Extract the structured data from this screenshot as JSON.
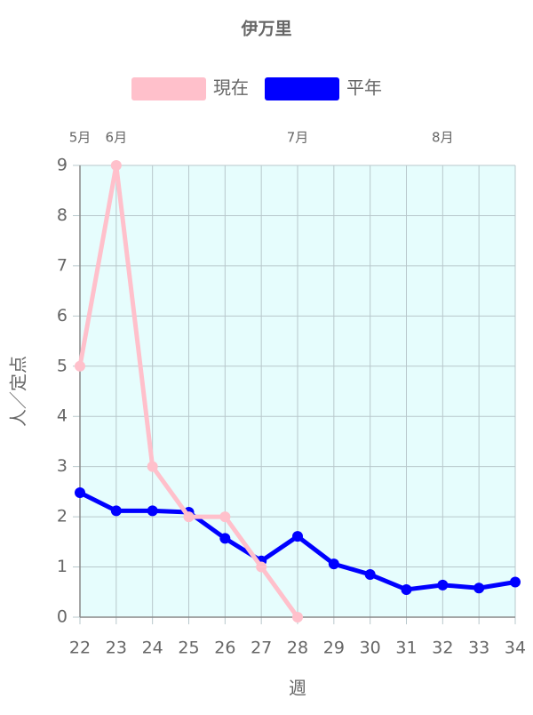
{
  "chart_data": {
    "type": "line",
    "title": "伊万里",
    "x_label": "週",
    "y_label": "人／定点",
    "x": [
      22,
      23,
      24,
      25,
      26,
      27,
      28,
      29,
      30,
      31,
      32,
      33,
      34
    ],
    "series": [
      {
        "name": "現在",
        "color": "#ffc0cb",
        "values": [
          5,
          9,
          3,
          2,
          2,
          1,
          0,
          null,
          null,
          null,
          null,
          null,
          null
        ]
      },
      {
        "name": "平年",
        "color": "#0000ff",
        "values": [
          2.48,
          2.12,
          2.12,
          2.09,
          1.57,
          1.12,
          1.61,
          1.06,
          0.85,
          0.55,
          0.64,
          0.58,
          0.7
        ]
      }
    ],
    "xlim": [
      22,
      34
    ],
    "xticks": [
      22,
      23,
      24,
      25,
      26,
      27,
      28,
      29,
      30,
      31,
      32,
      33,
      34
    ],
    "ylim": [
      0,
      9
    ],
    "yticks": [
      0,
      1,
      2,
      3,
      4,
      5,
      6,
      7,
      8,
      9
    ],
    "month_labels": [
      {
        "x": 22,
        "label": "5月"
      },
      {
        "x": 23,
        "label": "6月"
      },
      {
        "x": 28,
        "label": "7月"
      },
      {
        "x": 32,
        "label": "8月"
      }
    ],
    "grid": true,
    "plot_background": "#e6fdfd",
    "legend_position": "top"
  }
}
